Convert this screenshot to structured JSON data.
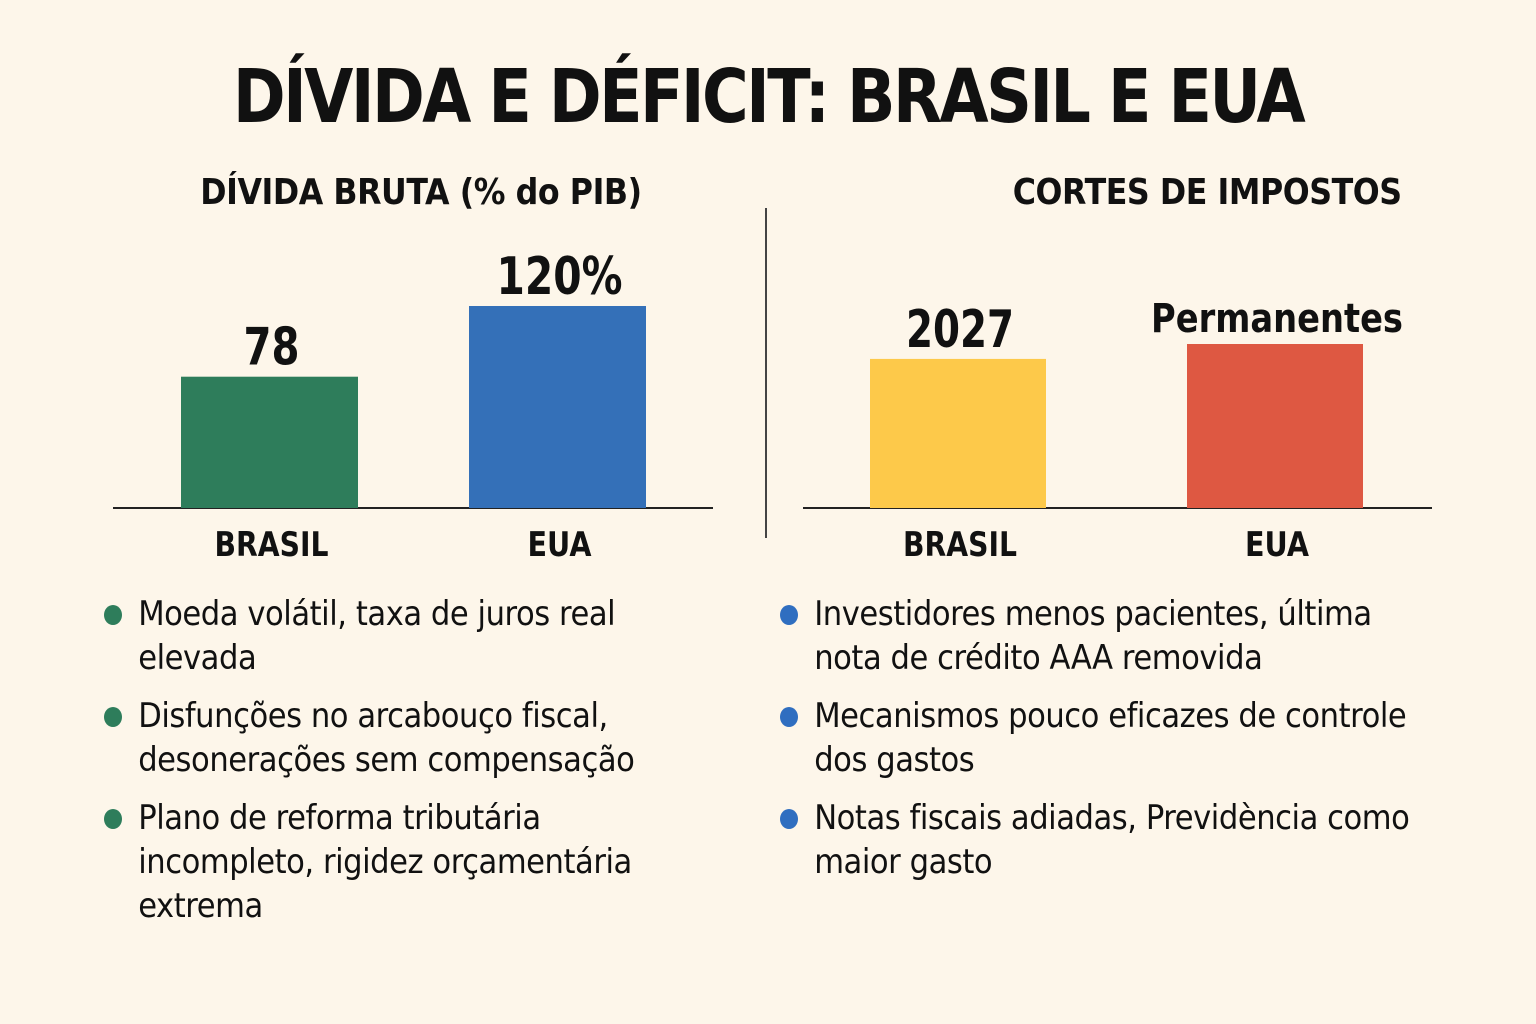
{
  "title": "DÍVIDA E DÉFICIT: BRASIL E EUA",
  "colors": {
    "background": "#fdf6ea",
    "brasil_debt": "#2e7d5b",
    "eua_debt": "#3470b8",
    "brasil_tax": "#fdc94a",
    "eua_tax": "#de5842",
    "left_bullet": "#2e7d5b",
    "right_bullet": "#2f6ec0"
  },
  "chart_data": [
    {
      "type": "bar",
      "title": "DÍVIDA BRUTA (% do PIB)",
      "categories": [
        "BRASIL",
        "EUA"
      ],
      "values": [
        78,
        120
      ],
      "labels": [
        "78",
        "120%"
      ],
      "ylim": [
        0,
        120
      ]
    },
    {
      "type": "bar",
      "title": "CORTES DE IMPOSTOS",
      "categories": [
        "BRASIL",
        "EUA"
      ],
      "values": [
        1,
        1.1
      ],
      "labels": [
        "2027",
        "Permanentes"
      ]
    }
  ],
  "left_bullets": [
    "Moeda volátil, taxa de juros real elevada",
    "Disfunções no arcabouço fiscal, desonerações sem compensação",
    "Plano de reforma tributária incompleto, rigidez orçamentária extrema"
  ],
  "right_bullets": [
    "Investidores menos pacientes, última nota de crédito AAA removida",
    "Mecanismos pouco eficazes de controle dos gastos",
    "Notas fiscais adiadas, Previdència como maior gasto"
  ]
}
